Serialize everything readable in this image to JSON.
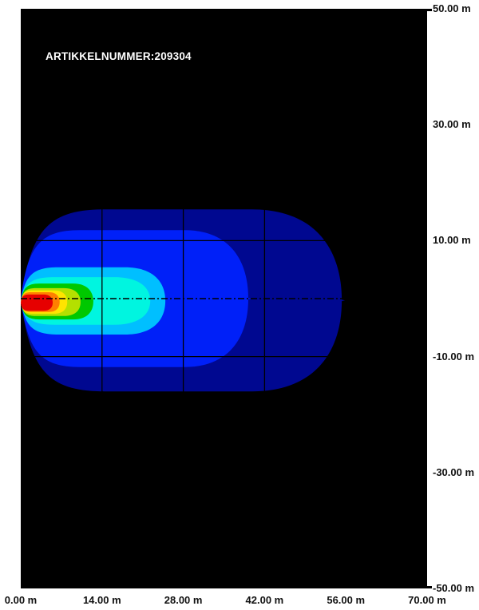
{
  "page": {
    "background": "#ffffff"
  },
  "plot": {
    "background": "#000000",
    "annotation": "ARTIKKELNUMMER:209304",
    "annotation_color": "#ffffff",
    "grid_color": "#000000",
    "centerline_style": "dash-dot"
  },
  "chart_data": {
    "type": "heatmap",
    "subtype": "isolux-beam-contour",
    "title": "",
    "annotation": "ARTIKKELNUMMER:209304",
    "xlabel": "",
    "ylabel": "",
    "x_unit": "m",
    "y_unit": "m",
    "xlim": [
      0,
      70
    ],
    "ylim": [
      -50,
      50
    ],
    "grid": true,
    "x_ticks": [
      {
        "value": 0,
        "label": "0.00 m"
      },
      {
        "value": 14,
        "label": "14.00 m"
      },
      {
        "value": 28,
        "label": "28.00 m"
      },
      {
        "value": 42,
        "label": "42.00 m"
      },
      {
        "value": 56,
        "label": "56.00 m"
      },
      {
        "value": 70,
        "label": "70.00 m"
      }
    ],
    "y_ticks": [
      {
        "value": 50,
        "label": "50.00 m"
      },
      {
        "value": 30,
        "label": "30.00 m"
      },
      {
        "value": 10,
        "label": "10.00 m"
      },
      {
        "value": -10,
        "label": "-10.00 m"
      },
      {
        "value": -30,
        "label": "-30.00 m"
      },
      {
        "value": -50,
        "label": "-50.00 m"
      }
    ],
    "grid_x_m": [
      14,
      28,
      42,
      56
    ],
    "grid_y_m": [
      30,
      10,
      -10,
      -30
    ],
    "beam_axis_y_m": 0,
    "beam_origin_x_m": 0,
    "bands": [
      {
        "name": "band-outer-dark-blue",
        "color": "#000890",
        "x_max_m": 55.3,
        "y_top_m": 15.4,
        "y_bottom_m": -16.0,
        "tip": true
      },
      {
        "name": "band-blue",
        "color": "#0020f8",
        "x_max_m": 39.2,
        "y_top_m": 11.8,
        "y_bottom_m": -11.8,
        "tip": true
      },
      {
        "name": "band-sky-blue",
        "color": "#00bfff",
        "x_max_m": 24.9,
        "y_top_m": 5.4,
        "y_bottom_m": -6.2,
        "tip": false
      },
      {
        "name": "band-cyan",
        "color": "#00f5e0",
        "x_max_m": 22.3,
        "y_top_m": 3.7,
        "y_bottom_m": -4.5,
        "tip": false
      },
      {
        "name": "band-green",
        "color": "#00c800",
        "x_max_m": 12.5,
        "y_top_m": 2.6,
        "y_bottom_m": -3.6,
        "tip": false
      },
      {
        "name": "band-yellow-green",
        "color": "#b4e000",
        "x_max_m": 10.3,
        "y_top_m": 1.8,
        "y_bottom_m": -3.0,
        "tip": false
      },
      {
        "name": "band-yellow",
        "color": "#ffe400",
        "x_max_m": 8.0,
        "y_top_m": 1.4,
        "y_bottom_m": -2.6,
        "tip": false
      },
      {
        "name": "band-orange",
        "color": "#ff7f00",
        "x_max_m": 6.7,
        "y_top_m": 1.1,
        "y_bottom_m": -2.3,
        "tip": false
      },
      {
        "name": "band-red",
        "color": "#e60000",
        "x_max_m": 5.5,
        "y_top_m": 0.7,
        "y_bottom_m": -2.1,
        "tip": false
      }
    ]
  }
}
